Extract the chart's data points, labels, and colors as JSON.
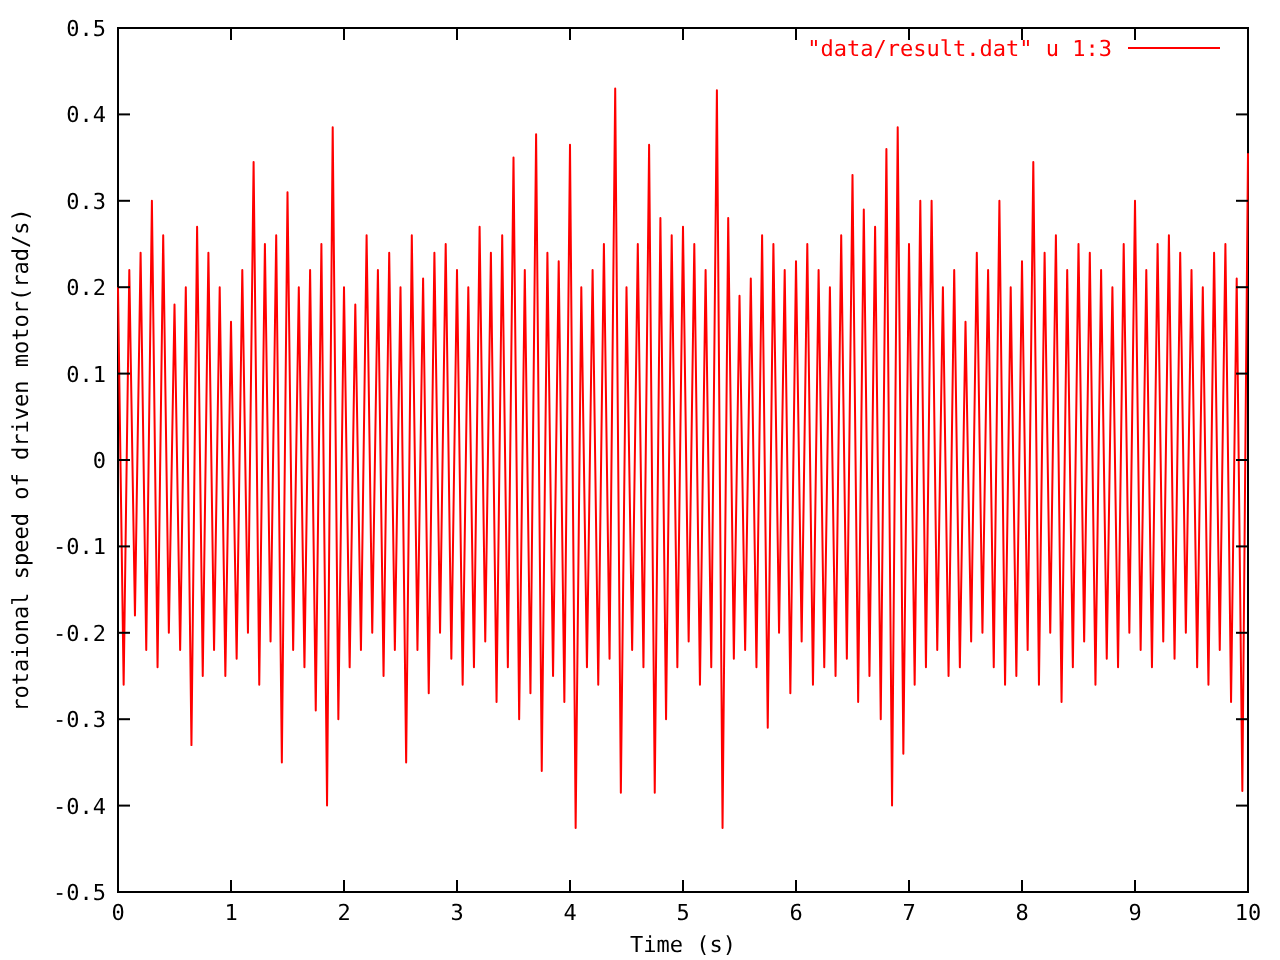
{
  "chart_data": {
    "type": "line",
    "xlabel": "Time (s)",
    "ylabel": "rotaional speed of driven motor(rad/s)",
    "xlim": [
      0,
      10
    ],
    "ylim": [
      -0.5,
      0.5
    ],
    "xticks": [
      0,
      1,
      2,
      3,
      4,
      5,
      6,
      7,
      8,
      9,
      10
    ],
    "yticks": [
      {
        "value": -0.5,
        "label": "-0.5"
      },
      {
        "value": -0.4,
        "label": "-0.4"
      },
      {
        "value": -0.3,
        "label": "-0.3"
      },
      {
        "value": -0.2,
        "label": "-0.2"
      },
      {
        "value": -0.1,
        "label": "-0.1"
      },
      {
        "value": 0,
        "label": "0"
      },
      {
        "value": 0.1,
        "label": "0.1"
      },
      {
        "value": 0.2,
        "label": "0.2"
      },
      {
        "value": 0.3,
        "label": "0.3"
      },
      {
        "value": 0.4,
        "label": "0.4"
      },
      {
        "value": 0.5,
        "label": "0.5"
      }
    ],
    "grid": false,
    "legend": "top right",
    "line_style": "solid",
    "series": [
      {
        "name": "\"data/result.dat\" u 1:3",
        "color": "#ff0000",
        "x": [
          0,
          0.05,
          0.1,
          0.15,
          0.2,
          0.25,
          0.3,
          0.35,
          0.4,
          0.45,
          0.5,
          0.55,
          0.6,
          0.65,
          0.7,
          0.75,
          0.8,
          0.85,
          0.9,
          0.95,
          1,
          1.05,
          1.1,
          1.15,
          1.2,
          1.25,
          1.3,
          1.35,
          1.4,
          1.45,
          1.5,
          1.55,
          1.6,
          1.65,
          1.7,
          1.75,
          1.8,
          1.85,
          1.9,
          1.95,
          2,
          2.05,
          2.1,
          2.15,
          2.2,
          2.25,
          2.3,
          2.35,
          2.4,
          2.45,
          2.5,
          2.55,
          2.6,
          2.65,
          2.7,
          2.75,
          2.8,
          2.85,
          2.9,
          2.95,
          3,
          3.05,
          3.1,
          3.15,
          3.2,
          3.25,
          3.3,
          3.35,
          3.4,
          3.45,
          3.5,
          3.55,
          3.6,
          3.65,
          3.7,
          3.75,
          3.8,
          3.85,
          3.9,
          3.95,
          4,
          4.05,
          4.1,
          4.15,
          4.2,
          4.25,
          4.3,
          4.35,
          4.4,
          4.45,
          4.5,
          4.55,
          4.6,
          4.65,
          4.7,
          4.75,
          4.8,
          4.85,
          4.9,
          4.95,
          5,
          5.05,
          5.1,
          5.15,
          5.2,
          5.25,
          5.3,
          5.35,
          5.4,
          5.45,
          5.5,
          5.55,
          5.6,
          5.65,
          5.7,
          5.75,
          5.8,
          5.85,
          5.9,
          5.95,
          6,
          6.05,
          6.1,
          6.15,
          6.2,
          6.25,
          6.3,
          6.35,
          6.4,
          6.45,
          6.5,
          6.55,
          6.6,
          6.65,
          6.7,
          6.75,
          6.8,
          6.85,
          6.9,
          6.95,
          7,
          7.05,
          7.1,
          7.15,
          7.2,
          7.25,
          7.3,
          7.35,
          7.4,
          7.45,
          7.5,
          7.55,
          7.6,
          7.65,
          7.7,
          7.75,
          7.8,
          7.85,
          7.9,
          7.95,
          8,
          8.05,
          8.1,
          8.15,
          8.2,
          8.25,
          8.3,
          8.35,
          8.4,
          8.45,
          8.5,
          8.55,
          8.6,
          8.65,
          8.7,
          8.75,
          8.8,
          8.85,
          8.9,
          8.95,
          9,
          9.05,
          9.1,
          9.15,
          9.2,
          9.25,
          9.3,
          9.35,
          9.4,
          9.45,
          9.5,
          9.55,
          9.6,
          9.65,
          9.7,
          9.75,
          9.8,
          9.85,
          9.9,
          9.95,
          10
        ],
        "values": [
          0.2,
          -0.26,
          0.22,
          -0.18,
          0.24,
          -0.22,
          0.3,
          -0.24,
          0.26,
          -0.2,
          0.18,
          -0.22,
          0.2,
          -0.33,
          0.27,
          -0.25,
          0.24,
          -0.22,
          0.2,
          -0.25,
          0.16,
          -0.23,
          0.22,
          -0.2,
          0.345,
          -0.26,
          0.25,
          -0.21,
          0.26,
          -0.35,
          0.31,
          -0.22,
          0.2,
          -0.24,
          0.22,
          -0.29,
          0.25,
          -0.4,
          0.385,
          -0.3,
          0.2,
          -0.24,
          0.18,
          -0.22,
          0.26,
          -0.2,
          0.22,
          -0.25,
          0.24,
          -0.22,
          0.2,
          -0.35,
          0.26,
          -0.22,
          0.21,
          -0.27,
          0.24,
          -0.2,
          0.25,
          -0.23,
          0.22,
          -0.26,
          0.2,
          -0.24,
          0.27,
          -0.21,
          0.24,
          -0.28,
          0.26,
          -0.24,
          0.35,
          -0.3,
          0.22,
          -0.27,
          0.377,
          -0.36,
          0.24,
          -0.25,
          0.23,
          -0.28,
          0.365,
          -0.426,
          0.2,
          -0.24,
          0.22,
          -0.26,
          0.25,
          -0.23,
          0.43,
          -0.385,
          0.2,
          -0.22,
          0.25,
          -0.24,
          0.365,
          -0.385,
          0.28,
          -0.3,
          0.26,
          -0.24,
          0.27,
          -0.21,
          0.25,
          -0.26,
          0.22,
          -0.24,
          0.428,
          -0.426,
          0.28,
          -0.23,
          0.19,
          -0.22,
          0.21,
          -0.24,
          0.26,
          -0.31,
          0.25,
          -0.2,
          0.22,
          -0.27,
          0.23,
          -0.21,
          0.25,
          -0.26,
          0.22,
          -0.24,
          0.2,
          -0.25,
          0.26,
          -0.23,
          0.33,
          -0.28,
          0.29,
          -0.25,
          0.27,
          -0.3,
          0.36,
          -0.4,
          0.385,
          -0.34,
          0.25,
          -0.26,
          0.3,
          -0.24,
          0.3,
          -0.22,
          0.2,
          -0.25,
          0.22,
          -0.24,
          0.16,
          -0.21,
          0.24,
          -0.2,
          0.22,
          -0.24,
          0.3,
          -0.26,
          0.2,
          -0.25,
          0.23,
          -0.22,
          0.345,
          -0.26,
          0.24,
          -0.2,
          0.26,
          -0.28,
          0.22,
          -0.24,
          0.25,
          -0.21,
          0.24,
          -0.26,
          0.22,
          -0.23,
          0.2,
          -0.24,
          0.25,
          -0.2,
          0.3,
          -0.22,
          0.22,
          -0.24,
          0.25,
          -0.21,
          0.26,
          -0.23,
          0.24,
          -0.2,
          0.22,
          -0.24,
          0.2,
          -0.26,
          0.24,
          -0.22,
          0.25,
          -0.28,
          0.21,
          -0.383,
          0.355
        ]
      }
    ]
  }
}
